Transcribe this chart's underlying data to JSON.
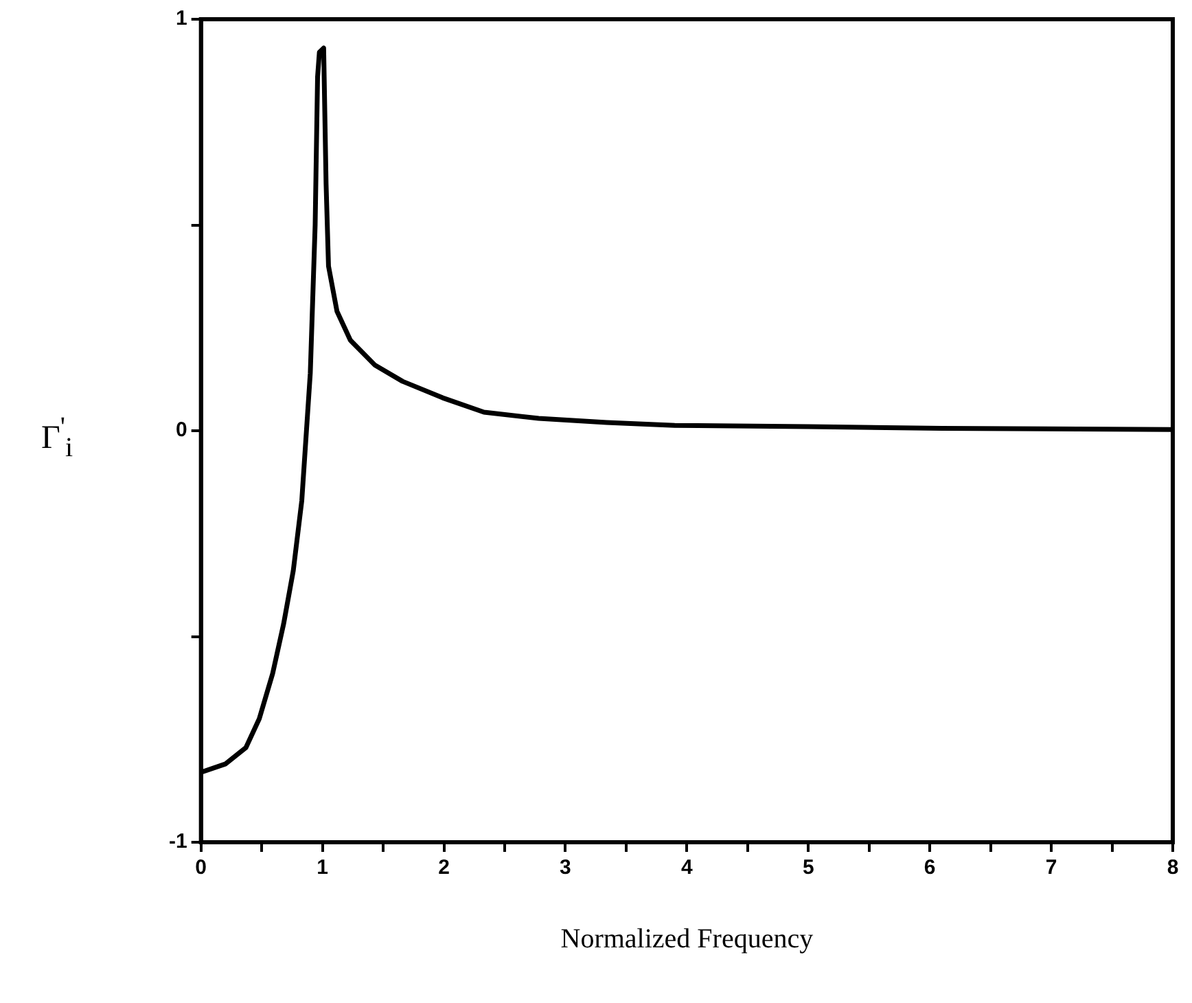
{
  "chart_data": {
    "type": "line",
    "xlabel": "Normalized Frequency",
    "ylabel": "Γ$^{'}$$_{i}$",
    "x": [
      0,
      0.2,
      0.37,
      0.48,
      0.59,
      0.68,
      0.76,
      0.83,
      0.9,
      0.94,
      0.96,
      0.975,
      1.01,
      1.03,
      1.05,
      1.12,
      1.23,
      1.43,
      1.66,
      1.99,
      2.33,
      2.78,
      3.34,
      3.9,
      5.0,
      6.1,
      8
    ],
    "series": [
      {
        "color": "#000000",
        "values": [
          -0.83,
          -0.81,
          -0.77,
          -0.7,
          -0.59,
          -0.47,
          -0.34,
          -0.17,
          0.14,
          0.5,
          0.86,
          0.92,
          0.93,
          0.6,
          0.4,
          0.29,
          0.22,
          0.16,
          0.12,
          0.08,
          0.045,
          0.03,
          0.02,
          0.013,
          0.01,
          0.006,
          0.003
        ]
      }
    ],
    "xlim": [
      0,
      8
    ],
    "xticks": [
      0,
      {
        "value": 0.5,
        "label": null
      },
      1,
      {
        "value": 1.5,
        "label": null
      },
      2,
      {
        "value": 2.5,
        "label": null
      },
      3,
      {
        "value": 3.5,
        "label": null
      },
      4,
      {
        "value": 4.5,
        "label": null
      },
      5,
      {
        "value": 5.5,
        "label": null
      },
      6,
      {
        "value": 6.5,
        "label": null
      },
      7,
      {
        "value": 7.5,
        "label": null
      },
      8
    ],
    "ylim": [
      -1,
      1
    ],
    "yticks": [
      -1,
      {
        "value": -0.5,
        "label": null
      },
      0,
      {
        "value": 0.5,
        "label": null
      },
      1
    ],
    "grid": false,
    "legend": false,
    "marker": "none",
    "line_style": "solid"
  }
}
